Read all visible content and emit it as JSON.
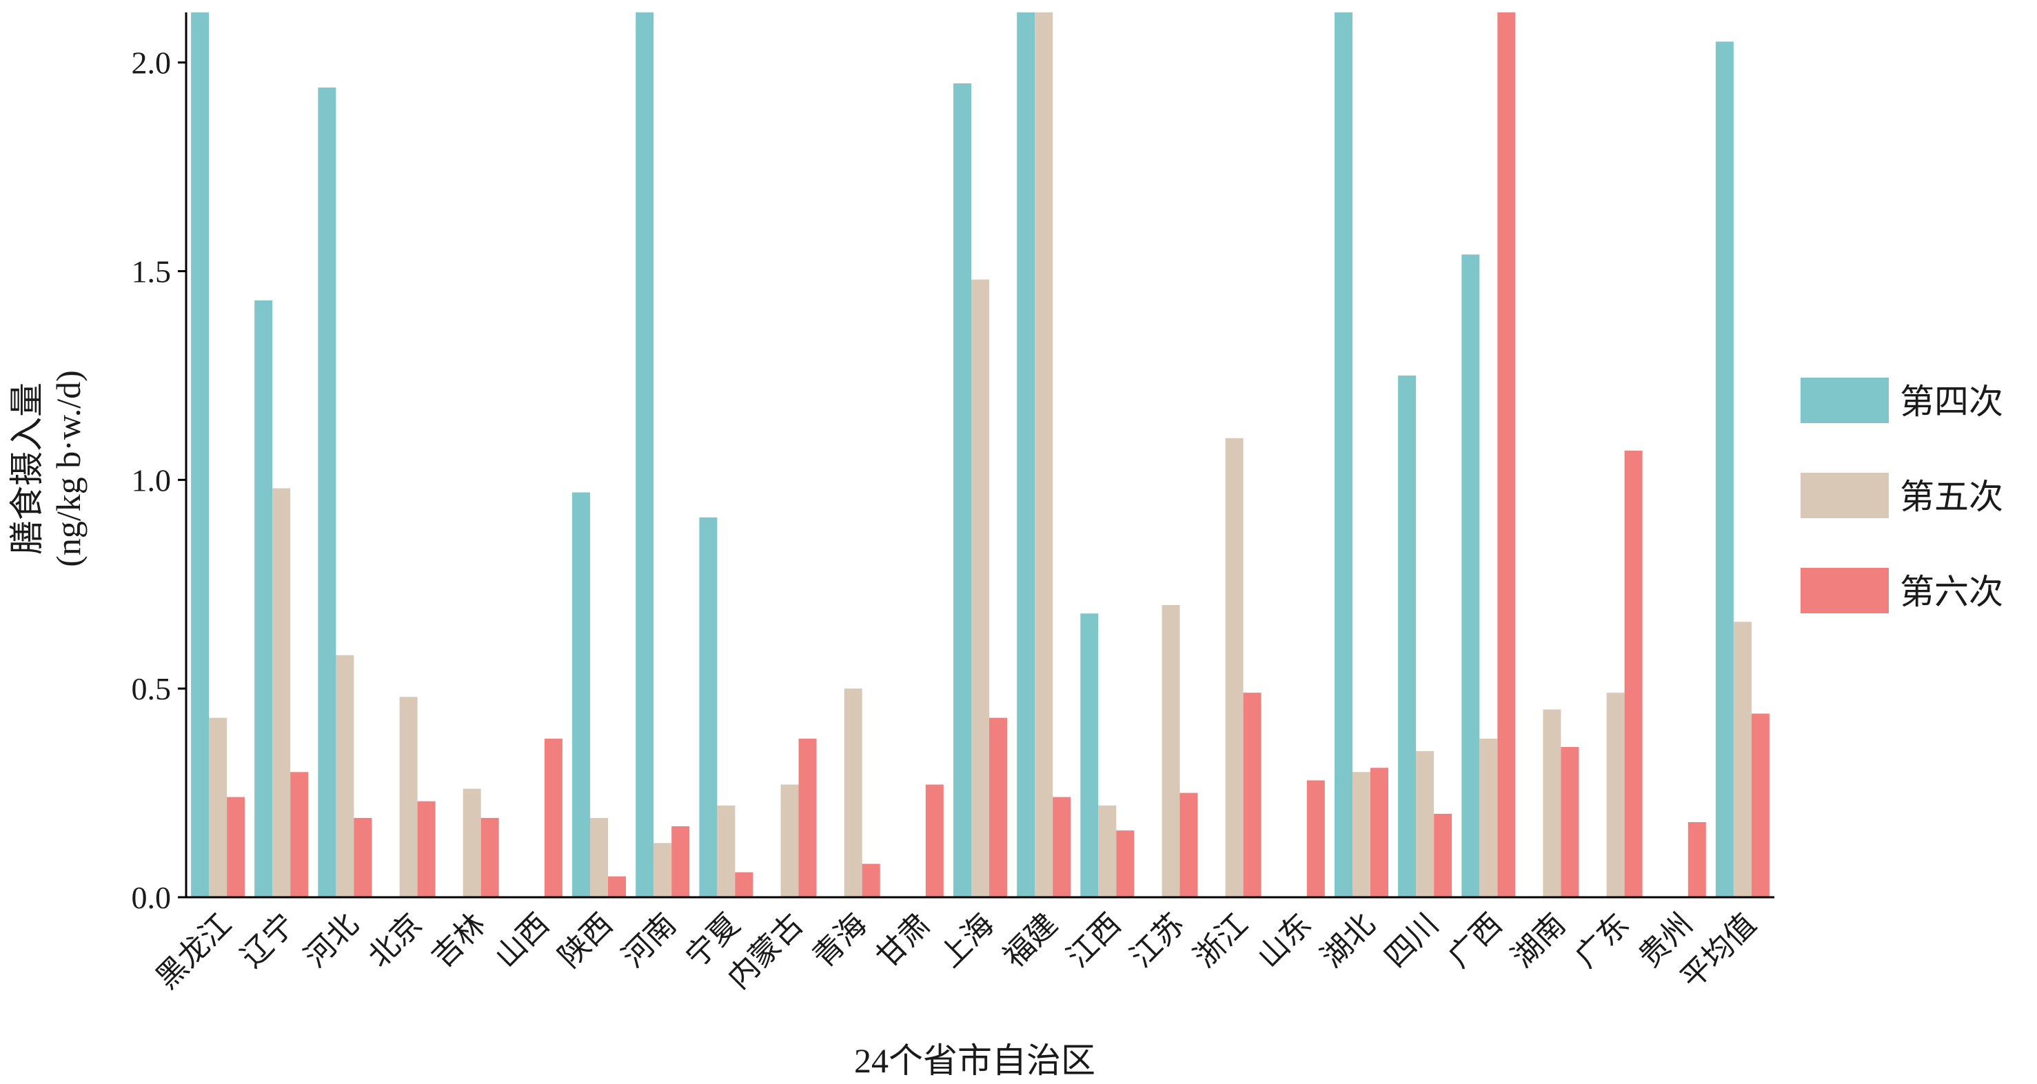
{
  "chart_data": {
    "type": "bar",
    "xlabel": "24个省市自治区",
    "ylabel": "膳食摄入量",
    "ylabel_unit": "(ng/kg b·w./d)",
    "ylim": [
      0,
      2.12
    ],
    "yticks": [
      "0.0",
      "0.5",
      "1.0",
      "1.5",
      "2.0"
    ],
    "grid": false,
    "legend_position": "right",
    "categories": [
      "黑龙江",
      "辽宁",
      "河北",
      "北京",
      "吉林",
      "山西",
      "陕西",
      "河南",
      "宁夏",
      "内蒙古",
      "青海",
      "甘肃",
      "上海",
      "福建",
      "江西",
      "江苏",
      "浙江",
      "山东",
      "湖北",
      "四川",
      "广西",
      "湖南",
      "广东",
      "贵州",
      "平均值"
    ],
    "series": [
      {
        "name": "第四次",
        "color": "#7EC6CA",
        "values": [
          2.12,
          1.43,
          1.94,
          0,
          0,
          0,
          0.97,
          2.12,
          0.91,
          0,
          0,
          0,
          1.95,
          2.12,
          0.68,
          0,
          0,
          0,
          2.12,
          1.25,
          1.54,
          0,
          0,
          0,
          2.05
        ]
      },
      {
        "name": "第五次",
        "color": "#D9C8B5",
        "values": [
          0.43,
          0.98,
          0.58,
          0.48,
          0.26,
          0,
          0.19,
          0.13,
          0.22,
          0.27,
          0.5,
          0,
          1.48,
          2.12,
          0.22,
          0.7,
          1.1,
          0,
          0.3,
          0.35,
          0.38,
          0.45,
          0.49,
          0,
          0.66
        ]
      },
      {
        "name": "第六次",
        "color": "#F07F7E",
        "values": [
          0.24,
          0.3,
          0.19,
          0.23,
          0.19,
          0.38,
          0.05,
          0.17,
          0.06,
          0.38,
          0.08,
          0.27,
          0.43,
          0.24,
          0.16,
          0.25,
          0.49,
          0.28,
          0.31,
          0.2,
          2.12,
          0.36,
          1.07,
          0.18,
          0.44
        ]
      }
    ]
  }
}
